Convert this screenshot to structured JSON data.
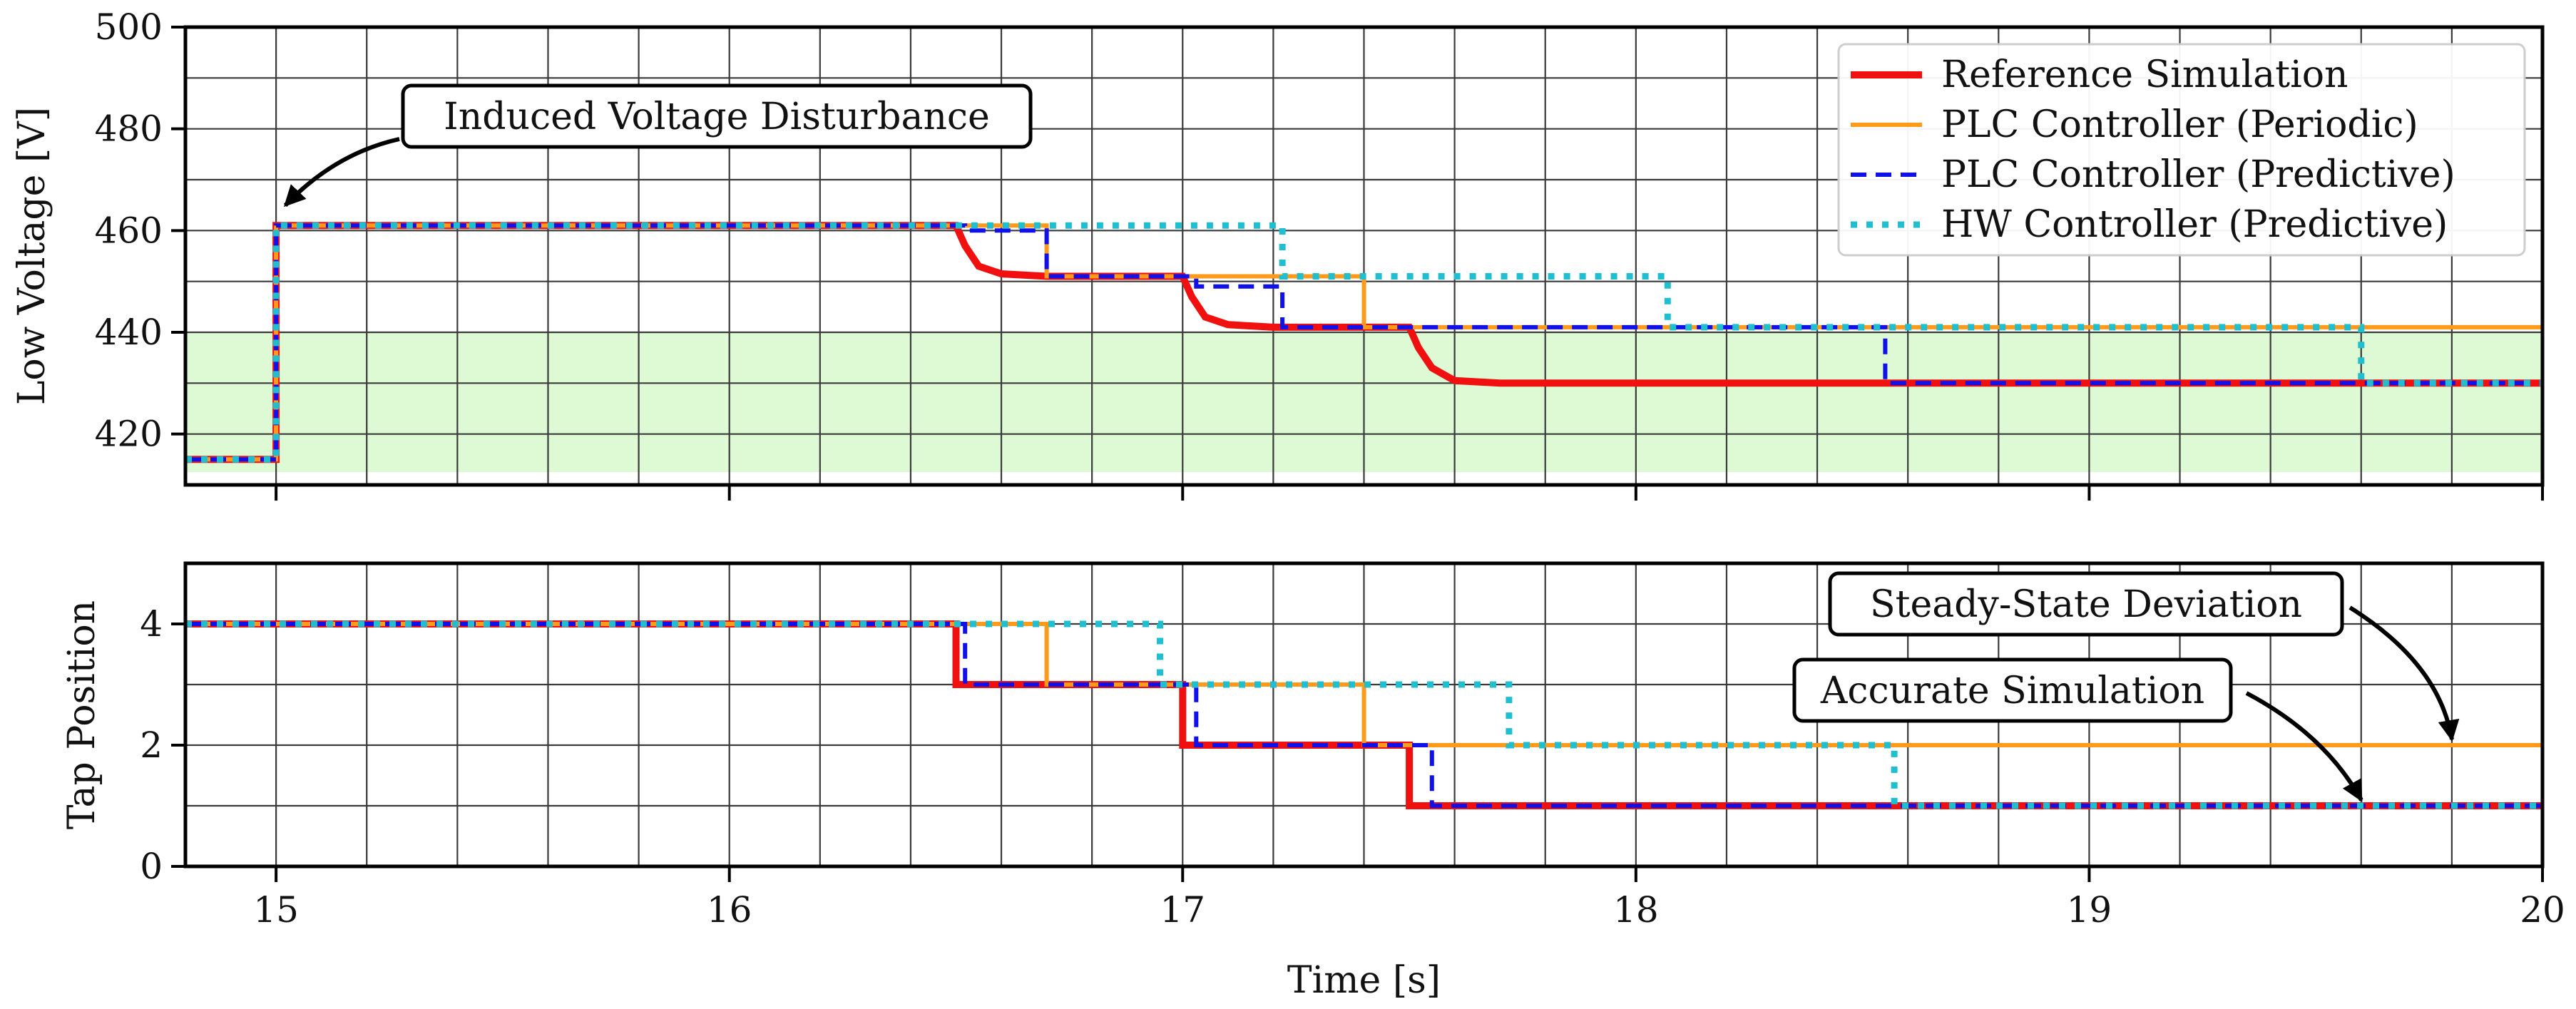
{
  "chart_data": [
    {
      "type": "line",
      "ylabel": "Low Voltage [V]",
      "xlim": [
        14.8,
        20.0
      ],
      "ylim": [
        410,
        500
      ],
      "yticks": [
        420,
        440,
        460,
        480,
        500
      ],
      "grid": true,
      "shaded_band": {
        "y_range": [
          412.5,
          440
        ],
        "color": "#ddfad5"
      },
      "legend_position": "top-right",
      "legend": [
        "Reference Simulation",
        "PLC Controller (Periodic)",
        "PLC Controller (Predictive)",
        "HW Controller (Predictive)"
      ],
      "annotations": [
        {
          "text": "Induced Voltage Disturbance",
          "arrow_to": [
            15.02,
            465
          ]
        }
      ],
      "series": [
        {
          "name": "Reference Simulation",
          "color": "#f01010",
          "style": "solid-thick",
          "points": [
            [
              14.8,
              415
            ],
            [
              15.0,
              415
            ],
            [
              15.0,
              461
            ],
            [
              16.5,
              461
            ],
            [
              16.52,
              457
            ],
            [
              16.55,
              453
            ],
            [
              16.6,
              451.5
            ],
            [
              16.7,
              451
            ],
            [
              17.0,
              451
            ],
            [
              17.02,
              447
            ],
            [
              17.05,
              443
            ],
            [
              17.1,
              441.5
            ],
            [
              17.2,
              441
            ],
            [
              17.5,
              441
            ],
            [
              17.52,
              437
            ],
            [
              17.55,
              433
            ],
            [
              17.6,
              430.5
            ],
            [
              17.7,
              430
            ],
            [
              20.0,
              430
            ]
          ]
        },
        {
          "name": "PLC Controller (Periodic)",
          "color": "#ff9a1a",
          "style": "solid",
          "points": [
            [
              14.8,
              415
            ],
            [
              15.0,
              415
            ],
            [
              15.0,
              461
            ],
            [
              16.7,
              461
            ],
            [
              16.7,
              451
            ],
            [
              17.4,
              451
            ],
            [
              17.4,
              441
            ],
            [
              20.0,
              441
            ]
          ]
        },
        {
          "name": "PLC Controller (Predictive)",
          "color": "#1010e8",
          "style": "dashed",
          "points": [
            [
              14.8,
              415
            ],
            [
              15.0,
              415
            ],
            [
              15.0,
              461
            ],
            [
              16.52,
              461
            ],
            [
              16.52,
              460
            ],
            [
              16.7,
              460
            ],
            [
              16.7,
              451
            ],
            [
              17.03,
              451
            ],
            [
              17.03,
              449
            ],
            [
              17.22,
              449
            ],
            [
              17.22,
              441
            ],
            [
              18.55,
              441
            ],
            [
              18.55,
              430
            ],
            [
              20.0,
              430
            ]
          ]
        },
        {
          "name": "HW Controller (Predictive)",
          "color": "#1fbfd0",
          "style": "dotted",
          "points": [
            [
              14.8,
              415
            ],
            [
              15.0,
              415
            ],
            [
              15.0,
              461
            ],
            [
              17.22,
              461
            ],
            [
              17.22,
              451
            ],
            [
              18.07,
              451
            ],
            [
              18.07,
              441
            ],
            [
              19.6,
              441
            ],
            [
              19.6,
              430
            ],
            [
              20.0,
              430
            ]
          ]
        }
      ]
    },
    {
      "type": "line",
      "xlabel": "Time [s]",
      "ylabel": "Tap Position",
      "xlim": [
        14.8,
        20.0
      ],
      "ylim": [
        0,
        5
      ],
      "xticks": [
        15,
        16,
        17,
        18,
        19,
        20
      ],
      "yticks": [
        0,
        2,
        4
      ],
      "grid": true,
      "annotations": [
        {
          "text": "Steady-State Deviation",
          "arrow_to": [
            19.8,
            2.1
          ]
        },
        {
          "text": "Accurate Simulation",
          "arrow_to": [
            19.6,
            1.1
          ]
        }
      ],
      "series": [
        {
          "name": "Reference Simulation",
          "color": "#f01010",
          "style": "solid-thick",
          "points": [
            [
              14.8,
              4
            ],
            [
              16.5,
              4
            ],
            [
              16.5,
              3
            ],
            [
              17.0,
              3
            ],
            [
              17.0,
              2
            ],
            [
              17.5,
              2
            ],
            [
              17.5,
              1
            ],
            [
              20.0,
              1
            ]
          ]
        },
        {
          "name": "PLC Controller (Periodic)",
          "color": "#ff9a1a",
          "style": "solid",
          "points": [
            [
              14.8,
              4
            ],
            [
              16.7,
              4
            ],
            [
              16.7,
              3
            ],
            [
              17.4,
              3
            ],
            [
              17.4,
              2
            ],
            [
              20.0,
              2
            ]
          ]
        },
        {
          "name": "PLC Controller (Predictive)",
          "color": "#1010e8",
          "style": "dashed",
          "points": [
            [
              14.8,
              4
            ],
            [
              16.52,
              4
            ],
            [
              16.52,
              3
            ],
            [
              17.03,
              3
            ],
            [
              17.03,
              2
            ],
            [
              17.55,
              2
            ],
            [
              17.55,
              1
            ],
            [
              20.0,
              1
            ]
          ]
        },
        {
          "name": "HW Controller (Predictive)",
          "color": "#1fbfd0",
          "style": "dotted",
          "points": [
            [
              14.8,
              4
            ],
            [
              16.95,
              4
            ],
            [
              16.95,
              3
            ],
            [
              17.72,
              3
            ],
            [
              17.72,
              2
            ],
            [
              18.57,
              2
            ],
            [
              18.57,
              1
            ],
            [
              20.0,
              1
            ]
          ]
        }
      ]
    }
  ]
}
